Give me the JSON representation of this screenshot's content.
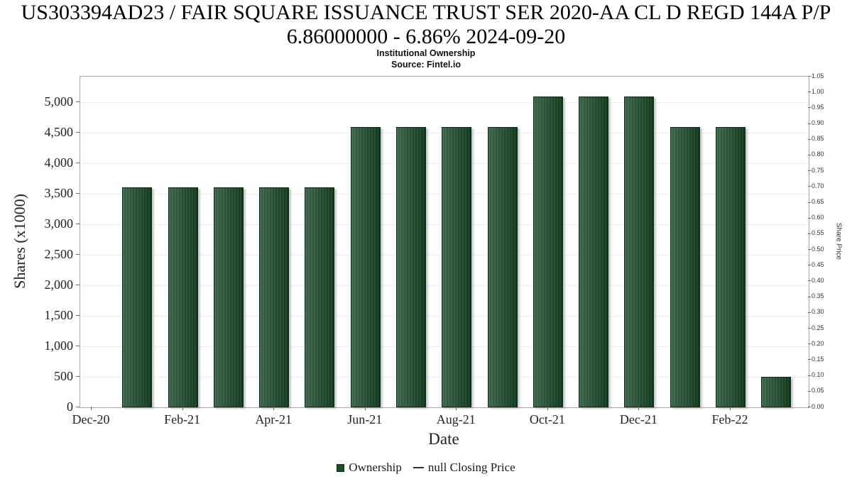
{
  "title": {
    "line1": "US303394AD23 / FAIR SQUARE ISSUANCE TRUST SER 2020-AA CL D REGD 144A P/P",
    "line2": "6.86000000 - 6.86% 2024-09-20",
    "subtitle": "Institutional Ownership",
    "source": "Source: Fintel.io"
  },
  "chart_data": {
    "type": "bar",
    "title": "US303394AD23 / FAIR SQUARE ISSUANCE TRUST SER 2020-AA CL D REGD 144A P/P 6.86000000 - 6.86% 2024-09-20",
    "subtitle": "Institutional Ownership",
    "source": "Source: Fintel.io",
    "xlabel": "Date",
    "ylabel_left": "Shares (x1000)",
    "ylabel_right": "Share Price",
    "series_name": "Ownership",
    "categories": [
      "Jan-21",
      "Feb-21",
      "Mar-21",
      "Apr-21",
      "May-21",
      "Jun-21",
      "Jul-21",
      "Aug-21",
      "Sep-21",
      "Oct-21",
      "Nov-21",
      "Dec-21",
      "Jan-22",
      "Feb-22",
      "Mar-22"
    ],
    "values": [
      3600,
      3600,
      3600,
      3600,
      3600,
      4600,
      4600,
      4600,
      4600,
      5100,
      5100,
      5100,
      4600,
      4600,
      500
    ],
    "x_tick_labels": [
      "Dec-20",
      "Feb-21",
      "Apr-21",
      "Jun-21",
      "Aug-21",
      "Oct-21",
      "Dec-21",
      "Feb-22"
    ],
    "left_axis": {
      "min": 0,
      "max": 5420,
      "tick_values": [
        0,
        500,
        1000,
        1500,
        2000,
        2500,
        3000,
        3500,
        4000,
        4500,
        5000
      ],
      "tick_labels": [
        "0",
        "500",
        "1,000",
        "1,500",
        "2,000",
        "2,500",
        "3,000",
        "3,500",
        "4,000",
        "4,500",
        "5,000"
      ]
    },
    "right_axis": {
      "min": 0.0,
      "max": 1.05,
      "labels": [
        "0.00",
        "0.05",
        "0.10",
        "0.15",
        "0.20",
        "0.25",
        "0.30",
        "0.35",
        "0.40",
        "0.45",
        "0.50",
        "0.55",
        "0.60",
        "0.65",
        "0.70",
        "0.75",
        "0.80",
        "0.85",
        "0.90",
        "0.95",
        "1.00",
        "1.05"
      ]
    },
    "grid": true,
    "bar_color": "#1a4c27",
    "legend_position": "bottom",
    "legend": [
      {
        "label": "Ownership",
        "swatch": "square",
        "color": "#1a4c27"
      },
      {
        "label": "null Closing Price",
        "swatch": "line",
        "color": "#333333"
      }
    ]
  }
}
